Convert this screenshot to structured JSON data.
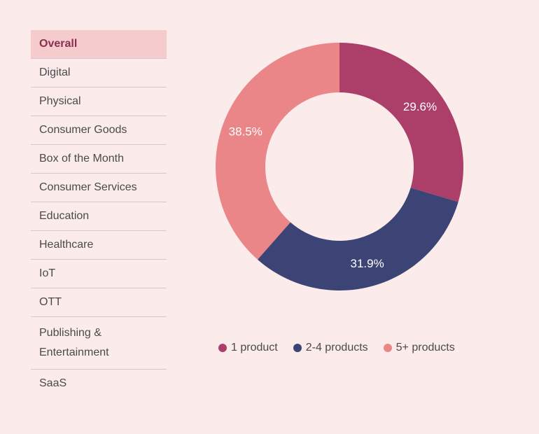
{
  "sidebar": {
    "items": [
      {
        "label": "Overall",
        "active": true
      },
      {
        "label": "Digital"
      },
      {
        "label": "Physical"
      },
      {
        "label": "Consumer Goods"
      },
      {
        "label": "Box of the Month"
      },
      {
        "label": "Consumer Services"
      },
      {
        "label": "Education"
      },
      {
        "label": "Healthcare"
      },
      {
        "label": "IoT"
      },
      {
        "label": "OTT"
      },
      {
        "label": "Publishing & Entertainment"
      },
      {
        "label": "SaaS"
      }
    ]
  },
  "chart_data": {
    "type": "pie",
    "style": "donut",
    "categories": [
      "1 product",
      "2-4 products",
      "5+ products"
    ],
    "values": [
      29.6,
      31.9,
      38.5
    ],
    "labels": [
      "29.6%",
      "31.9%",
      "38.5%"
    ],
    "colors": [
      "#ab3f6a",
      "#3b4474",
      "#eb8688"
    ],
    "legend_position": "bottom"
  }
}
